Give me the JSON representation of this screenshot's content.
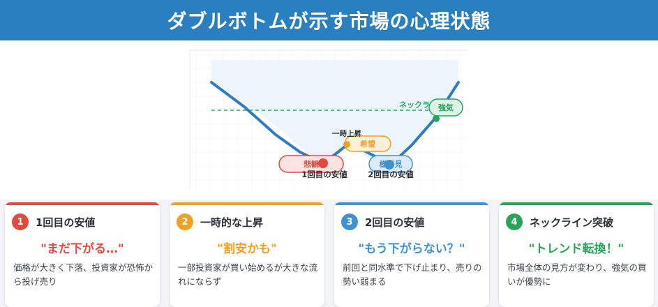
{
  "header": {
    "title": "ダブルボトムが示す市場の心理状態"
  },
  "diagram": {
    "neckline_label": "ネックライン",
    "emotions": {
      "despair": "悲観",
      "hope": "希望",
      "reassess": "様子見",
      "confidence": "強気"
    },
    "spike_label": "一時上昇",
    "bottom1_label": "1回目の安値",
    "bottom2_label": "2回目の安値"
  },
  "cards": [
    {
      "num": "1",
      "title": "1回目の安値",
      "quote": "\"まだ下がる…\"",
      "desc": "価格が大きく下落、投資家が恐怖から投げ売り",
      "color": "#e04a3f"
    },
    {
      "num": "2",
      "title": "一時的な上昇",
      "quote": "\"割安かも\"",
      "desc": "一部投資家が買い始めるが大きな流れにならず",
      "color": "#f0a023"
    },
    {
      "num": "3",
      "title": "2回目の安値",
      "quote": "\"もう下がらない？\"",
      "desc": "前回と同水準で下げ止まり、売りの勢い弱まる",
      "color": "#3f92d2"
    },
    {
      "num": "4",
      "title": "ネックライン突破",
      "quote": "\"トレンド転換！\"",
      "desc": "市場全体の見方が変わり、強気の買いが優勢に",
      "color": "#2aa35a"
    }
  ]
}
